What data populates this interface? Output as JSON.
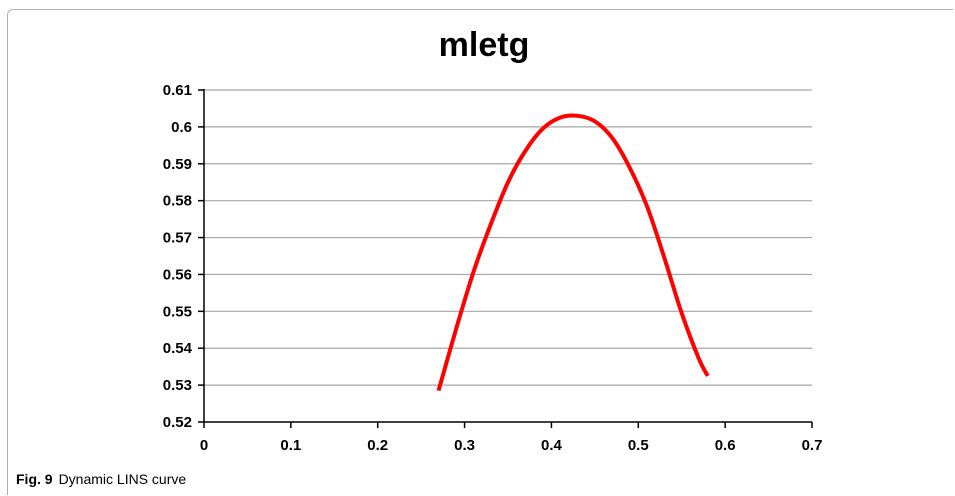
{
  "caption": {
    "fig_label": "Fig. 9",
    "text": "Dynamic LINS curve"
  },
  "chart_data": {
    "type": "line",
    "title": "mletg",
    "xlabel": "",
    "ylabel": "",
    "xlim": [
      0,
      0.7
    ],
    "ylim": [
      0.52,
      0.61
    ],
    "x_ticks": [
      "0",
      "0.1",
      "0.2",
      "0.3",
      "0.4",
      "0.5",
      "0.6",
      "0.7"
    ],
    "y_ticks": [
      "0.52",
      "0.53",
      "0.54",
      "0.55",
      "0.56",
      "0.57",
      "0.58",
      "0.59",
      "0.6",
      "0.61"
    ],
    "grid": "horizontal",
    "legend": "none",
    "series": [
      {
        "color": "#ff0000",
        "x": [
          0.27,
          0.29,
          0.31,
          0.33,
          0.35,
          0.37,
          0.39,
          0.41,
          0.43,
          0.45,
          0.47,
          0.49,
          0.51,
          0.53,
          0.55,
          0.57,
          0.58
        ],
        "y": [
          0.5285,
          0.545,
          0.5605,
          0.5735,
          0.585,
          0.5935,
          0.5995,
          0.6025,
          0.603,
          0.6015,
          0.597,
          0.589,
          0.5785,
          0.5645,
          0.5495,
          0.537,
          0.5325
        ]
      }
    ]
  }
}
